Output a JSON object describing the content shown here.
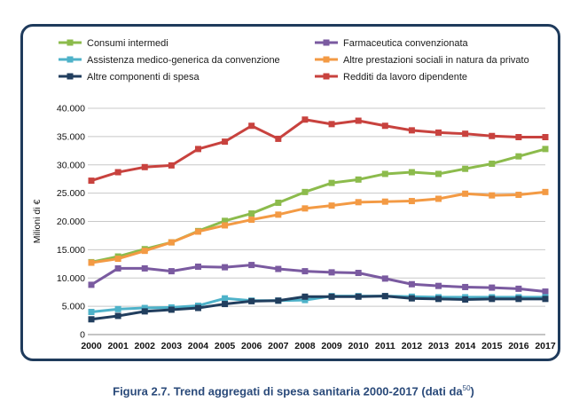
{
  "caption": {
    "main": "Figura 2.7. Trend aggregati di spesa sanitaria 2000-2017 (dati da",
    "ref": "50",
    "end": ")"
  },
  "chart_data": {
    "type": "line",
    "ylabel": "Milioni di €",
    "xlabel": "",
    "ylim": [
      0,
      40000
    ],
    "yticks": [
      0,
      5000,
      10000,
      15000,
      20000,
      25000,
      30000,
      35000,
      40000
    ],
    "ytick_labels": [
      "0",
      "5.000",
      "10.000",
      "15.000",
      "20.000",
      "25.000",
      "30.000",
      "35.000",
      "40.000"
    ],
    "grid": "horizontal",
    "legend_position": "top",
    "categories": [
      "2000",
      "2001",
      "2002",
      "2003",
      "2004",
      "2005",
      "2006",
      "2007",
      "2008",
      "2009",
      "2010",
      "2011",
      "2012",
      "2013",
      "2014",
      "2015",
      "2016",
      "2017"
    ],
    "series": [
      {
        "name": "Consumi intermedi",
        "color": "#8cbb4c",
        "values": [
          12800,
          13800,
          15100,
          16300,
          18300,
          20100,
          21400,
          23300,
          25200,
          26800,
          27400,
          28400,
          28700,
          28400,
          29300,
          30200,
          31500,
          32800
        ]
      },
      {
        "name": "Farmaceutica convenzionata",
        "color": "#7a5aa0",
        "values": [
          8800,
          11700,
          11700,
          11200,
          12000,
          11900,
          12300,
          11600,
          11200,
          11000,
          10900,
          9900,
          8900,
          8600,
          8400,
          8300,
          8100,
          7600
        ]
      },
      {
        "name": "Assistenza medico-generica da convenzione",
        "color": "#4eb2c9",
        "values": [
          4000,
          4500,
          4700,
          4800,
          5100,
          6400,
          6000,
          6000,
          6100,
          6800,
          6800,
          6800,
          6700,
          6600,
          6600,
          6600,
          6600,
          6600
        ]
      },
      {
        "name": "Altre prestazioni sociali in natura da privato",
        "color": "#f39a44",
        "values": [
          12700,
          13400,
          14800,
          16300,
          18200,
          19300,
          20300,
          21200,
          22300,
          22800,
          23400,
          23500,
          23600,
          24000,
          24900,
          24600,
          24700,
          25200
        ]
      },
      {
        "name": "Altre componenti di spesa",
        "color": "#213e5e",
        "values": [
          2700,
          3300,
          4100,
          4400,
          4700,
          5400,
          5900,
          6000,
          6700,
          6700,
          6700,
          6800,
          6400,
          6300,
          6200,
          6300,
          6300,
          6300
        ]
      },
      {
        "name": "Redditi da lavoro dipendente",
        "color": "#c8423e",
        "values": [
          27200,
          28700,
          29600,
          29900,
          32800,
          34100,
          36900,
          34600,
          38000,
          37200,
          37800,
          36900,
          36100,
          35700,
          35500,
          35100,
          34900,
          34900
        ]
      }
    ]
  }
}
